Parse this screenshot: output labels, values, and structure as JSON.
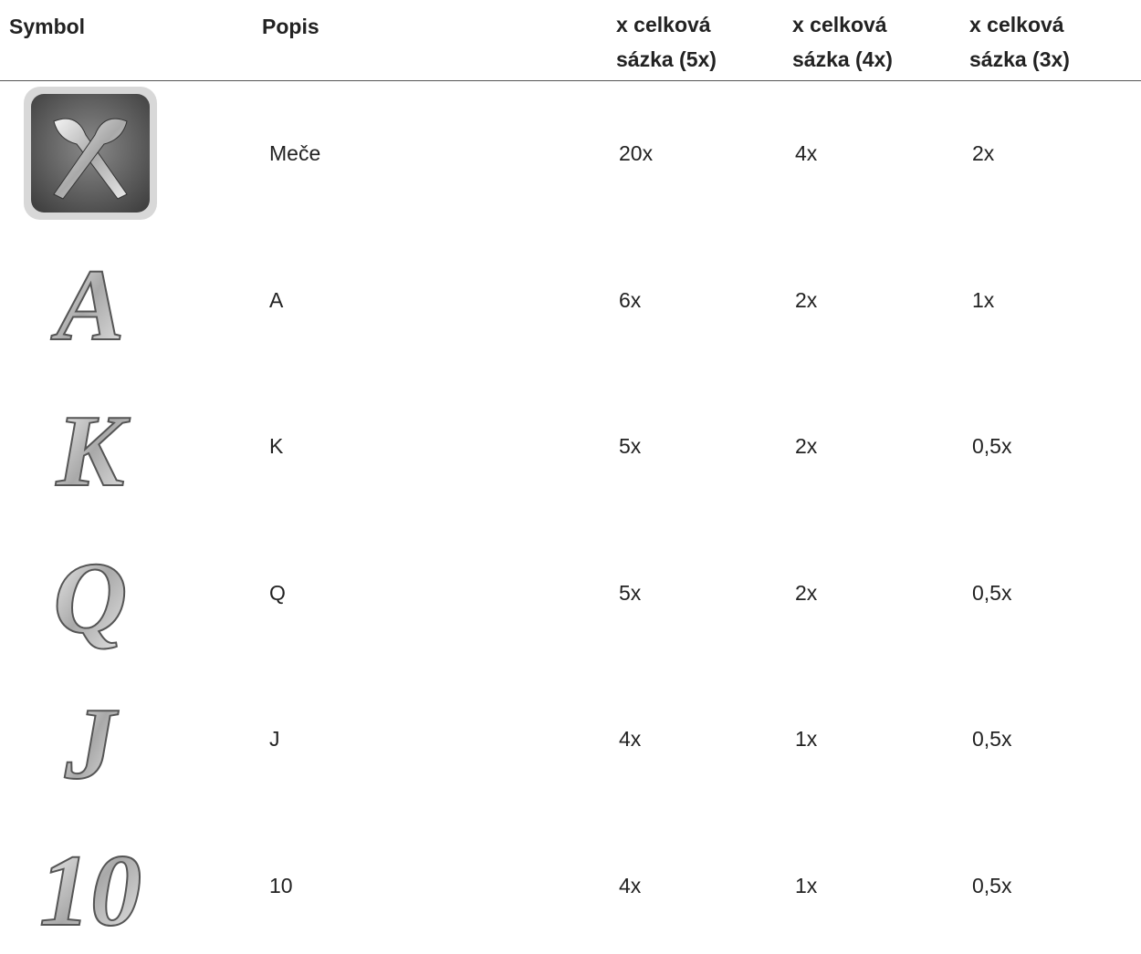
{
  "table": {
    "header": [
      "Symbol",
      "Popis",
      "x celková sázka (5x)",
      "x celková sázka (4x)",
      "x celková sázka (3x)"
    ],
    "rows": [
      {
        "popis": "Meče",
        "values": [
          "20x",
          "4x",
          "2x"
        ]
      },
      {
        "popis": "A",
        "values": [
          "6x",
          "2x",
          "1x"
        ]
      },
      {
        "popis": "K",
        "values": [
          "5x",
          "2x",
          "0,5x"
        ]
      },
      {
        "popis": "Q",
        "values": [
          "5x",
          "2x",
          "0,5x"
        ]
      },
      {
        "popis": "J",
        "values": [
          "4x",
          "1x",
          "0,5x"
        ]
      },
      {
        "popis": "10",
        "values": [
          "4x",
          "1x",
          "0,5x"
        ]
      }
    ]
  }
}
